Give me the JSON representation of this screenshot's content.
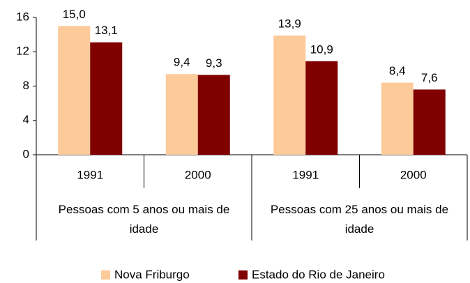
{
  "chart_data": {
    "type": "bar",
    "categories": [
      "1991",
      "2000",
      "1991",
      "2000"
    ],
    "groups": [
      {
        "label": "Pessoas com 5 anos ou mais de idade"
      },
      {
        "label": "Pessoas com 25 anos ou mais de idade"
      }
    ],
    "series": [
      {
        "name": "Nova Friburgo",
        "color": "#fdca9a",
        "values": [
          15.0,
          9.4,
          13.9,
          8.4
        ],
        "value_labels": [
          "15,0",
          "9,4",
          "13,9",
          "8,4"
        ]
      },
      {
        "name": "Estado do Rio de Janeiro",
        "color": "#800000",
        "values": [
          13.1,
          9.3,
          10.9,
          7.6
        ],
        "value_labels": [
          "13,1",
          "9,3",
          "10,9",
          "7,6"
        ]
      }
    ],
    "ylim": [
      0,
      16
    ],
    "yticks": [
      0,
      4,
      8,
      12,
      16
    ],
    "grid": false,
    "legend": "bottom"
  }
}
